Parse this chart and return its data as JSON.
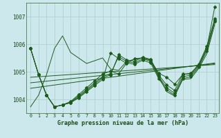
{
  "title": "Graphe pression niveau de la mer (hPa)",
  "xlim": [
    -0.5,
    23.5
  ],
  "ylim": [
    1003.5,
    1007.5
  ],
  "yticks": [
    1004,
    1005,
    1006,
    1007
  ],
  "background_color": "#cce8ec",
  "grid_color": "#aacccc",
  "line_color": "#1e5c1e",
  "series": [
    [
      1005.85,
      1004.9,
      1004.15,
      1003.73,
      1003.8,
      1003.88,
      1004.05,
      1004.28,
      1004.5,
      1004.72,
      1005.68,
      1005.48,
      1005.3,
      1005.48,
      1005.5,
      1005.42,
      1004.95,
      1004.8,
      1004.55,
      1004.9,
      1004.95,
      1005.25,
      1005.85,
      1007.35
    ],
    [
      1005.85,
      1004.9,
      1004.15,
      1003.73,
      1003.8,
      1003.88,
      1004.08,
      1004.32,
      1004.55,
      1004.78,
      1004.88,
      1005.62,
      1005.43,
      1005.38,
      1005.53,
      1005.45,
      1004.88,
      1004.52,
      1004.32,
      1004.92,
      1004.92,
      1005.28,
      1005.92,
      1006.92
    ],
    [
      1005.85,
      1004.9,
      1004.15,
      1003.73,
      1003.8,
      1003.9,
      1004.12,
      1004.36,
      1004.6,
      1004.83,
      1004.93,
      1005.55,
      1005.37,
      1005.32,
      1005.47,
      1005.38,
      1004.82,
      1004.42,
      1004.22,
      1004.82,
      1004.88,
      1005.22,
      1005.82,
      1006.88
    ],
    [
      1005.85,
      1004.9,
      1004.15,
      1003.73,
      1003.8,
      1003.92,
      1004.17,
      1004.42,
      1004.67,
      1004.92,
      1005.02,
      1004.92,
      1005.32,
      1005.27,
      1005.42,
      1005.32,
      1004.75,
      1004.35,
      1004.15,
      1004.75,
      1004.82,
      1005.17,
      1005.75,
      1006.82
    ],
    [
      1003.73,
      1004.15,
      1004.9,
      1005.85,
      1006.3,
      1005.7,
      1005.5,
      1005.3,
      1005.4,
      1005.5,
      1005.1,
      1005.05,
      1005.38,
      1005.45,
      1005.5,
      1005.42,
      1004.82,
      1004.28,
      1004.12,
      1004.72,
      1004.75,
      1005.12,
      1005.65,
      1006.72
    ]
  ],
  "series_with_markers": [
    0,
    1,
    2,
    3
  ],
  "trend_series": [
    [
      1004.8,
      1004.82,
      1004.84,
      1004.86,
      1004.88,
      1004.9,
      1004.92,
      1004.94,
      1004.96,
      1004.98,
      1005.0,
      1005.02,
      1005.04,
      1005.06,
      1005.08,
      1005.1,
      1005.12,
      1005.14,
      1005.16,
      1005.18,
      1005.2,
      1005.22,
      1005.24,
      1005.26
    ],
    [
      1004.6,
      1004.63,
      1004.66,
      1004.69,
      1004.72,
      1004.75,
      1004.78,
      1004.81,
      1004.84,
      1004.87,
      1004.9,
      1004.93,
      1004.96,
      1004.99,
      1005.02,
      1005.05,
      1005.08,
      1005.11,
      1005.14,
      1005.17,
      1005.2,
      1005.23,
      1005.26,
      1005.29
    ],
    [
      1004.4,
      1004.44,
      1004.48,
      1004.52,
      1004.56,
      1004.6,
      1004.64,
      1004.68,
      1004.72,
      1004.76,
      1004.8,
      1004.84,
      1004.88,
      1004.92,
      1004.96,
      1005.0,
      1005.04,
      1005.08,
      1005.12,
      1005.16,
      1005.2,
      1005.24,
      1005.28,
      1005.32
    ]
  ]
}
